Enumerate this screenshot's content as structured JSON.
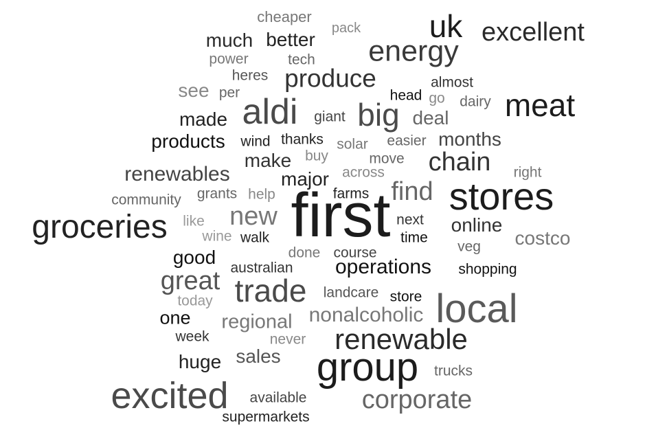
{
  "words": [
    {
      "text": "first",
      "color": "#1c1c1c"
    },
    {
      "text": "stores",
      "color": "#1c1c1c"
    },
    {
      "text": "group",
      "color": "#1c1c1c"
    },
    {
      "text": "local",
      "color": "#5a5a5a"
    },
    {
      "text": "excited",
      "color": "#4a4a4a"
    },
    {
      "text": "groceries",
      "color": "#222222"
    },
    {
      "text": "aldi",
      "color": "#4a4a4a"
    },
    {
      "text": "meat",
      "color": "#1c1c1c"
    },
    {
      "text": "energy",
      "color": "#3a3a3a"
    },
    {
      "text": "uk",
      "color": "#1c1c1c"
    },
    {
      "text": "excellent",
      "color": "#2a2a2a"
    },
    {
      "text": "renewable",
      "color": "#2a2a2a"
    },
    {
      "text": "trade",
      "color": "#4a4a4a"
    },
    {
      "text": "big",
      "color": "#4a4a4a"
    },
    {
      "text": "corporate",
      "color": "#666666"
    },
    {
      "text": "great",
      "color": "#555555"
    },
    {
      "text": "produce",
      "color": "#333333"
    },
    {
      "text": "chain",
      "color": "#333333"
    },
    {
      "text": "new",
      "color": "#777777"
    },
    {
      "text": "find",
      "color": "#666666"
    },
    {
      "text": "nonalcoholic",
      "color": "#777777"
    },
    {
      "text": "renewables",
      "color": "#444444"
    },
    {
      "text": "operations",
      "color": "#111111"
    },
    {
      "text": "online",
      "color": "#333333"
    },
    {
      "text": "costco",
      "color": "#777777"
    },
    {
      "text": "regional",
      "color": "#777777"
    },
    {
      "text": "much",
      "color": "#2a2a2a"
    },
    {
      "text": "better",
      "color": "#222222"
    },
    {
      "text": "products",
      "color": "#111111"
    },
    {
      "text": "deal",
      "color": "#666666"
    },
    {
      "text": "months",
      "color": "#444444"
    },
    {
      "text": "sales",
      "color": "#555555"
    },
    {
      "text": "huge",
      "color": "#222222"
    },
    {
      "text": "good",
      "color": "#111111"
    },
    {
      "text": "made",
      "color": "#222222"
    },
    {
      "text": "make",
      "color": "#333333"
    },
    {
      "text": "major",
      "color": "#222222"
    },
    {
      "text": "one",
      "color": "#111111"
    },
    {
      "text": "see",
      "color": "#888888"
    },
    {
      "text": "cheaper",
      "color": "#777777"
    },
    {
      "text": "pack",
      "color": "#888888"
    },
    {
      "text": "power",
      "color": "#777777"
    },
    {
      "text": "tech",
      "color": "#666666"
    },
    {
      "text": "heres",
      "color": "#555555"
    },
    {
      "text": "per",
      "color": "#666666"
    },
    {
      "text": "head",
      "color": "#111111"
    },
    {
      "text": "almost",
      "color": "#333333"
    },
    {
      "text": "go",
      "color": "#888888"
    },
    {
      "text": "dairy",
      "color": "#666666"
    },
    {
      "text": "giant",
      "color": "#444444"
    },
    {
      "text": "wind",
      "color": "#222222"
    },
    {
      "text": "thanks",
      "color": "#222222"
    },
    {
      "text": "solar",
      "color": "#777777"
    },
    {
      "text": "easier",
      "color": "#666666"
    },
    {
      "text": "buy",
      "color": "#888888"
    },
    {
      "text": "move",
      "color": "#666666"
    },
    {
      "text": "across",
      "color": "#888888"
    },
    {
      "text": "right",
      "color": "#777777"
    },
    {
      "text": "community",
      "color": "#666666"
    },
    {
      "text": "grants",
      "color": "#666666"
    },
    {
      "text": "help",
      "color": "#888888"
    },
    {
      "text": "farms",
      "color": "#222222"
    },
    {
      "text": "like",
      "color": "#999999"
    },
    {
      "text": "wine",
      "color": "#999999"
    },
    {
      "text": "walk",
      "color": "#222222"
    },
    {
      "text": "next",
      "color": "#333333"
    },
    {
      "text": "time",
      "color": "#111111"
    },
    {
      "text": "veg",
      "color": "#666666"
    },
    {
      "text": "done",
      "color": "#777777"
    },
    {
      "text": "course",
      "color": "#444444"
    },
    {
      "text": "australian",
      "color": "#333333"
    },
    {
      "text": "shopping",
      "color": "#111111"
    },
    {
      "text": "today",
      "color": "#999999"
    },
    {
      "text": "landcare",
      "color": "#555555"
    },
    {
      "text": "store",
      "color": "#111111"
    },
    {
      "text": "week",
      "color": "#333333"
    },
    {
      "text": "never",
      "color": "#888888"
    },
    {
      "text": "trucks",
      "color": "#666666"
    },
    {
      "text": "available",
      "color": "#444444"
    },
    {
      "text": "supermarkets",
      "color": "#222222"
    }
  ]
}
